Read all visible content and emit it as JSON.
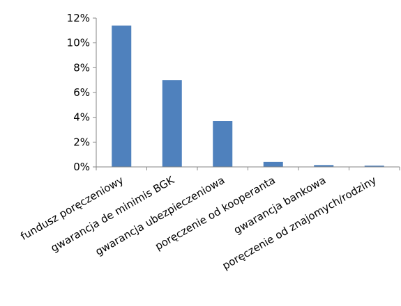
{
  "colors": {
    "bar": "#4f81bd",
    "axis": "#868686",
    "text": "#000000",
    "background": "#ffffff"
  },
  "chart_data": {
    "type": "bar",
    "title": "",
    "xlabel": "",
    "ylabel": "",
    "categories": [
      "fundusz poręczeniowy",
      "gwarancja de minimis BGK",
      "gwarancja ubezpieczeniowa",
      "poręczenie od kooperanta",
      "gwarancja bankowa",
      "poręczenie od znajomych/rodziny"
    ],
    "values": [
      11.4,
      7.0,
      3.7,
      0.4,
      0.15,
      0.1
    ],
    "ylim": [
      0,
      12
    ],
    "yticks": [
      0,
      2,
      4,
      6,
      8,
      10,
      12
    ],
    "ytick_labels": [
      "0%",
      "2%",
      "4%",
      "6%",
      "8%",
      "10%",
      "12%"
    ],
    "grid": false,
    "legend": "none"
  }
}
